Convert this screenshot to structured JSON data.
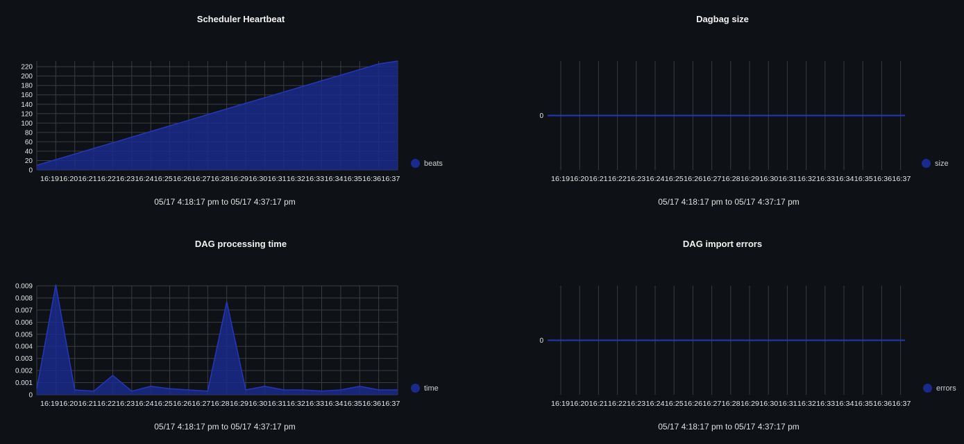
{
  "colors": {
    "series": "#1a2a8c",
    "series_line": "#2536b8",
    "grid": "#3a3d42",
    "text": "#e6e6e6",
    "background": "#0e1115"
  },
  "x_ticks": [
    "16:19",
    "16:20",
    "16:21",
    "16:22",
    "16:23",
    "16:24",
    "16:25",
    "16:26",
    "16:27",
    "16:28",
    "16:29",
    "16:30",
    "16:31",
    "16:32",
    "16:33",
    "16:34",
    "16:35",
    "16:36",
    "16:37"
  ],
  "chart_data": [
    {
      "id": "heartbeat",
      "type": "area",
      "title": "Scheduler Heartbeat",
      "range_text": "05/17 4:18:17 pm to 05/17 4:37:17 pm",
      "legend": "beats",
      "y_ticks": [
        "0",
        "20",
        "40",
        "60",
        "80",
        "100",
        "120",
        "140",
        "160",
        "180",
        "200",
        "220"
      ],
      "ylim": [
        0,
        232
      ],
      "values": [
        10,
        22,
        34,
        46,
        58,
        70,
        82,
        94,
        106,
        118,
        130,
        142,
        154,
        166,
        178,
        190,
        202,
        214,
        226,
        232
      ]
    },
    {
      "id": "dagbag",
      "type": "line",
      "title": "Dagbag size",
      "range_text": "05/17 4:18:17 pm to 05/17 4:37:17 pm",
      "legend": "size",
      "y_ticks": [
        "0"
      ],
      "ylim": [
        -1,
        1
      ],
      "values": [
        0,
        0
      ]
    },
    {
      "id": "processing",
      "type": "area",
      "title": "DAG processing time",
      "range_text": "05/17 4:18:17 pm to 05/17 4:37:17 pm",
      "legend": "time",
      "y_ticks": [
        "0",
        "0.001",
        "0.002",
        "0.003",
        "0.004",
        "0.005",
        "0.006",
        "0.007",
        "0.008",
        "0.009"
      ],
      "ylim": [
        0,
        0.009
      ],
      "values": [
        0.0005,
        0.0091,
        0.0004,
        0.0003,
        0.0016,
        0.0003,
        0.0007,
        0.0005,
        0.0004,
        0.0003,
        0.0077,
        0.0004,
        0.0007,
        0.0004,
        0.0004,
        0.0003,
        0.0004,
        0.0007,
        0.0004,
        0.0004
      ]
    },
    {
      "id": "import-errors",
      "type": "line",
      "title": "DAG import errors",
      "range_text": "05/17 4:18:17 pm to 05/17 4:37:17 pm",
      "legend": "errors",
      "y_ticks": [
        "0"
      ],
      "ylim": [
        -1,
        1
      ],
      "values": [
        0,
        0
      ]
    }
  ]
}
